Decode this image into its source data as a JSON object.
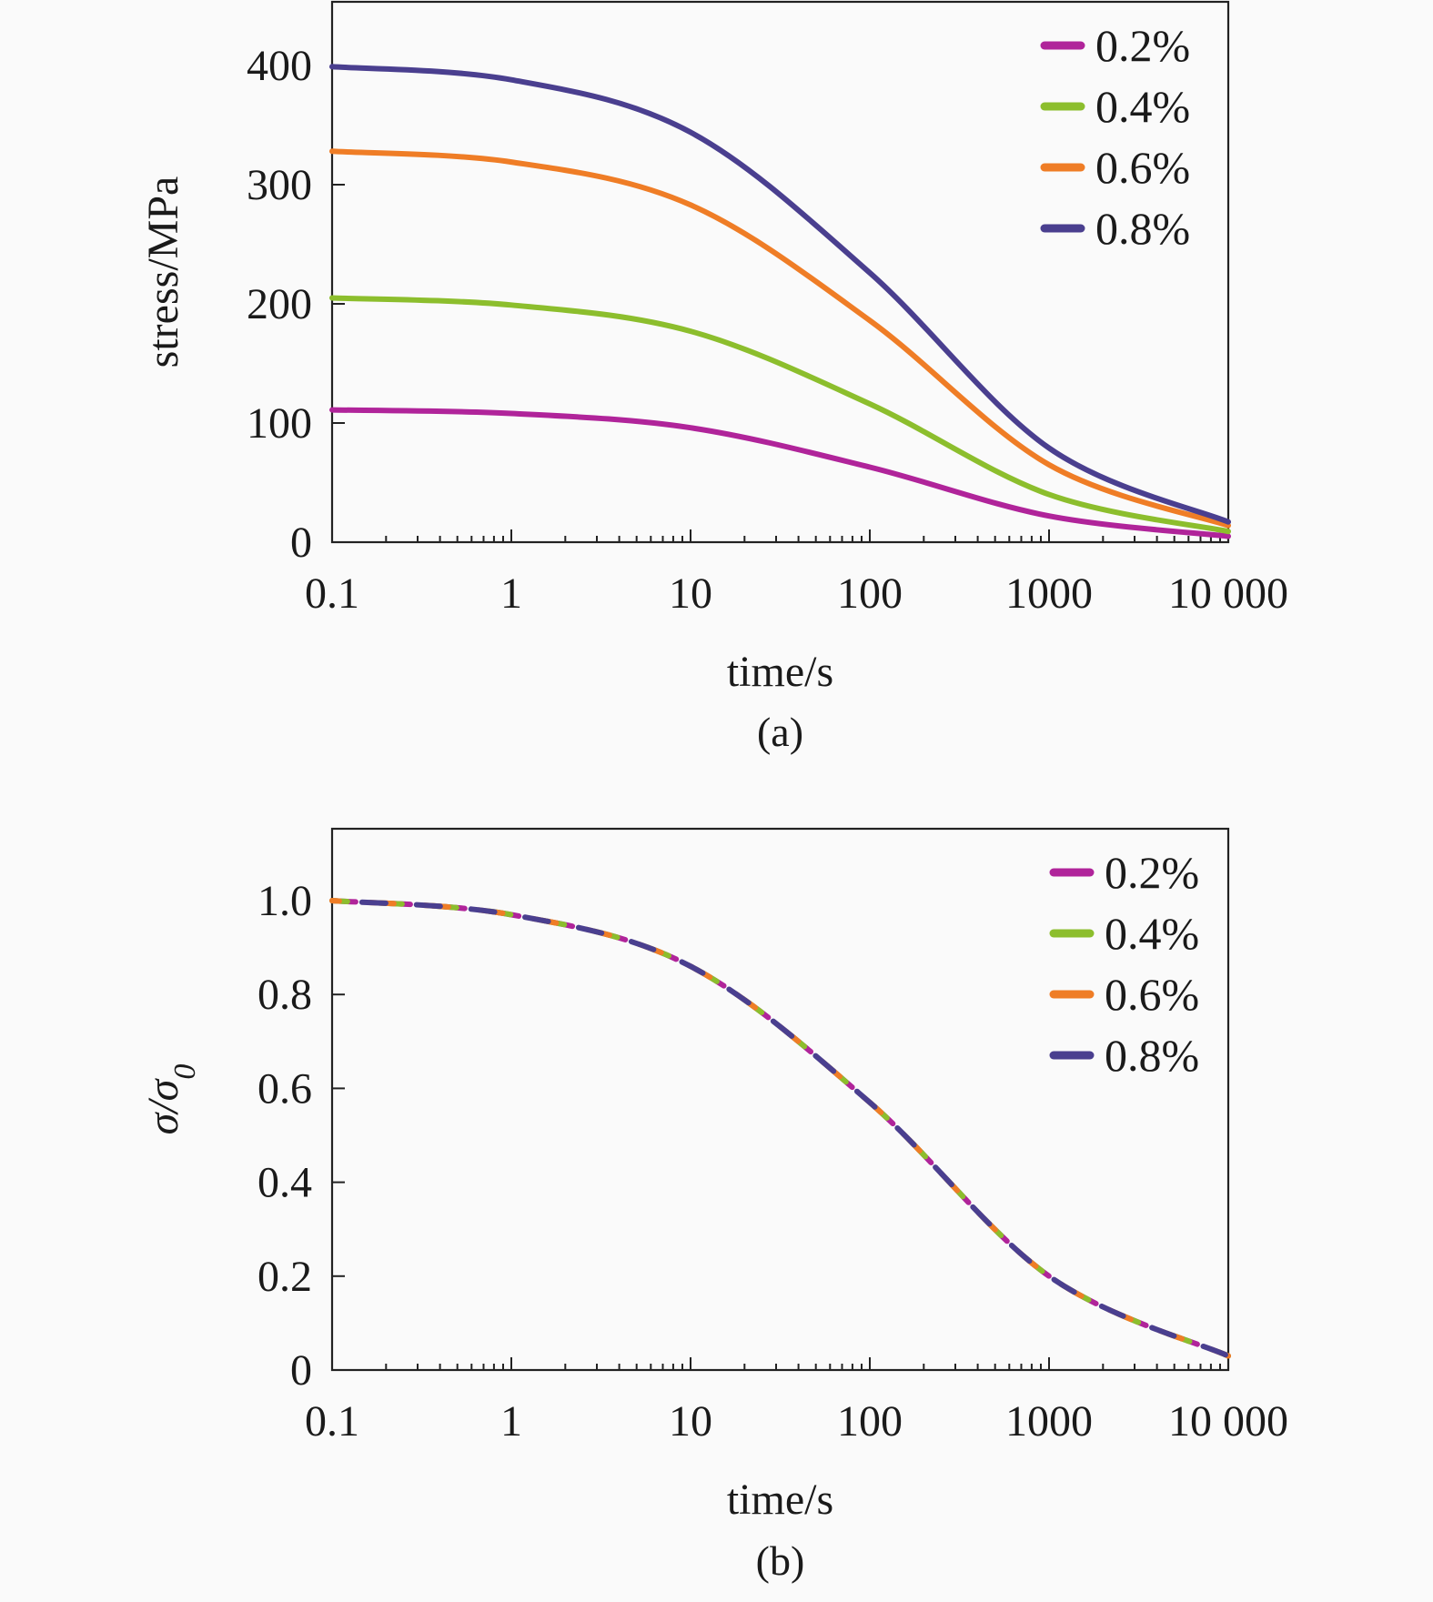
{
  "chart_data": [
    {
      "type": "line",
      "panel_caption": "(a)",
      "xlabel": "time/s",
      "ylabel": "stress/MPa",
      "xscale": "log",
      "xlim": [
        0.1,
        10000
      ],
      "ylim": [
        0,
        400
      ],
      "x_ticks": [
        0.1,
        1,
        10,
        100,
        1000,
        10000
      ],
      "x_tick_labels": [
        "0.1",
        "1",
        "10",
        "100",
        "1000",
        "10 000"
      ],
      "y_ticks": [
        0,
        100,
        200,
        300,
        400
      ],
      "y_tick_labels": [
        "0",
        "100",
        "200",
        "300",
        "400"
      ],
      "line_style": "solid",
      "legend_position": "top-right",
      "x": [
        0.1,
        1,
        10,
        100,
        1000,
        10000
      ],
      "series": [
        {
          "name": "0.2%",
          "color": "#b0249a",
          "values": [
            111,
            108,
            96,
            63,
            22,
            5
          ]
        },
        {
          "name": "0.4%",
          "color": "#8cbe2d",
          "values": [
            205,
            199,
            177,
            116,
            40,
            9
          ]
        },
        {
          "name": "0.6%",
          "color": "#ef7d26",
          "values": [
            328,
            319,
            283,
            186,
            65,
            14
          ]
        },
        {
          "name": "0.8%",
          "color": "#4a3f8f",
          "values": [
            399,
            388,
            344,
            226,
            79,
            17
          ]
        }
      ]
    },
    {
      "type": "line",
      "panel_caption": "(b)",
      "xlabel": "time/s",
      "ylabel": "σ/σ",
      "ylabel_subscript": "0",
      "xscale": "log",
      "xlim": [
        0.1,
        10000
      ],
      "ylim": [
        0,
        1.0
      ],
      "x_ticks": [
        0.1,
        1,
        10,
        100,
        1000,
        10000
      ],
      "x_tick_labels": [
        "0.1",
        "1",
        "10",
        "100",
        "1000",
        "10 000"
      ],
      "y_ticks": [
        0,
        0.2,
        0.4,
        0.6,
        0.8,
        1.0
      ],
      "y_tick_labels": [
        "0",
        "0.2",
        "0.4",
        "0.6",
        "0.8",
        "1.0"
      ],
      "line_style": "dashed",
      "legend_position": "top-right",
      "x": [
        0.1,
        1,
        10,
        100,
        1000,
        10000
      ],
      "series": [
        {
          "name": "0.2%",
          "color": "#b0249a",
          "values": [
            1.0,
            0.97,
            0.86,
            0.57,
            0.2,
            0.03
          ]
        },
        {
          "name": "0.4%",
          "color": "#8cbe2d",
          "values": [
            1.0,
            0.97,
            0.86,
            0.57,
            0.2,
            0.03
          ]
        },
        {
          "name": "0.6%",
          "color": "#ef7d26",
          "values": [
            1.0,
            0.97,
            0.86,
            0.57,
            0.2,
            0.03
          ]
        },
        {
          "name": "0.8%",
          "color": "#4a3f8f",
          "values": [
            1.0,
            0.97,
            0.86,
            0.57,
            0.2,
            0.03
          ]
        }
      ]
    }
  ]
}
